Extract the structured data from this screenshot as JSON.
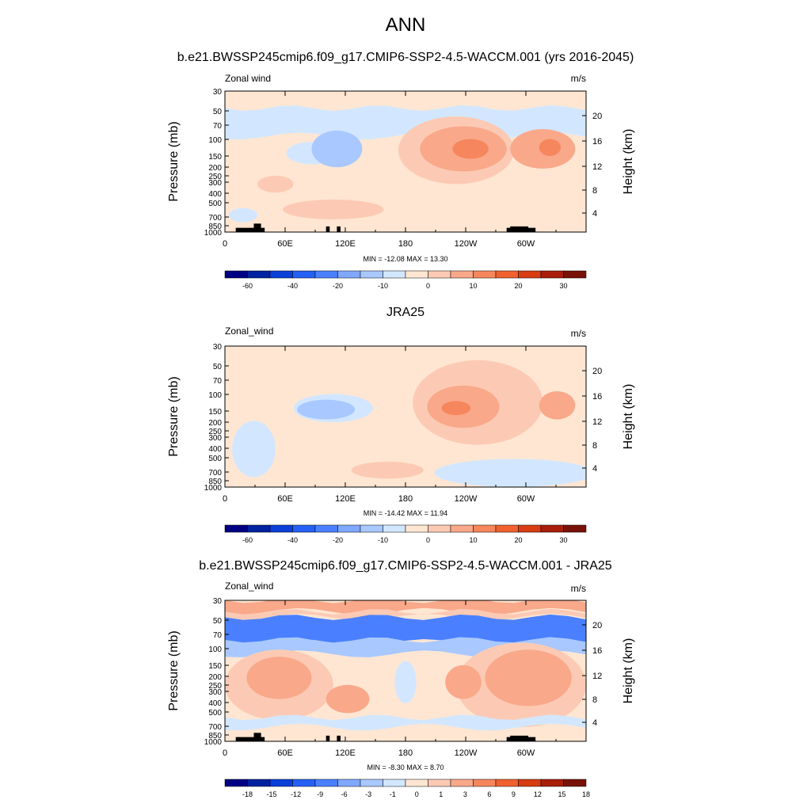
{
  "figure": {
    "title": "ANN"
  },
  "colors": {
    "levels": [
      "#000082",
      "#0022a0",
      "#0a40d8",
      "#2560f5",
      "#4a80ff",
      "#7fa8ff",
      "#a8c8ff",
      "#d2e7ff",
      "#ffe6d2",
      "#fccab4",
      "#f9a88a",
      "#f6865d",
      "#f0612f",
      "#d83c12",
      "#a81e0a",
      "#781208"
    ]
  },
  "chart_data": [
    {
      "type": "heatmap",
      "title": "b.e21.BWSSP245cmip6.f09_g17.CMIP6-SSP2-4.5-WACCM.001 (yrs 2016-2045)",
      "variable_label": "Zonal wind",
      "units": "m/s",
      "xlabel": "",
      "ylabel": "Pressure (mb)",
      "ylabel_right": "Height (km)",
      "x_ticks": [
        "0",
        "60E",
        "120E",
        "180",
        "120W",
        "60W"
      ],
      "y_ticks": [
        "30",
        "50",
        "70",
        "100",
        "150",
        "200",
        "250",
        "300",
        "400",
        "500",
        "700",
        "850",
        "1000"
      ],
      "y_ticks_right": [
        "20",
        "16",
        "12",
        "8",
        "4"
      ],
      "min": -12.08,
      "max": 13.3,
      "stats_label": "MIN = -12.08  MAX =  13.30",
      "colorbar_labels": [
        "-60",
        "-40",
        "-20",
        "-10",
        "0",
        "10",
        "20",
        "30"
      ]
    },
    {
      "type": "heatmap",
      "title": "JRA25",
      "variable_label": "Zonal_wind",
      "units": "m/s",
      "xlabel": "",
      "ylabel": "Pressure (mb)",
      "ylabel_right": "Height (km)",
      "x_ticks": [
        "0",
        "60E",
        "120E",
        "180",
        "120W",
        "60W"
      ],
      "y_ticks": [
        "30",
        "50",
        "70",
        "100",
        "150",
        "200",
        "250",
        "300",
        "400",
        "500",
        "700",
        "850",
        "1000"
      ],
      "y_ticks_right": [
        "20",
        "16",
        "12",
        "8",
        "4"
      ],
      "min": -14.42,
      "max": 11.94,
      "stats_label": "MIN = -14.42  MAX =  11.94",
      "colorbar_labels": [
        "-60",
        "-40",
        "-20",
        "-10",
        "0",
        "10",
        "20",
        "30"
      ]
    },
    {
      "type": "heatmap",
      "title": "b.e21.BWSSP245cmip6.f09_g17.CMIP6-SSP2-4.5-WACCM.001 - JRA25",
      "variable_label": "Zonal_wind",
      "units": "m/s",
      "xlabel": "",
      "ylabel": "Pressure (mb)",
      "ylabel_right": "Height (km)",
      "x_ticks": [
        "0",
        "60E",
        "120E",
        "180",
        "120W",
        "60W"
      ],
      "y_ticks": [
        "30",
        "50",
        "70",
        "100",
        "150",
        "200",
        "250",
        "300",
        "400",
        "500",
        "700",
        "850",
        "1000"
      ],
      "y_ticks_right": [
        "20",
        "16",
        "12",
        "8",
        "4"
      ],
      "min": -8.3,
      "max": 8.7,
      "stats_label": "MIN =  -8.30  MAX =   8.70",
      "colorbar_labels": [
        "-18",
        "-15",
        "-12",
        "-9",
        "-6",
        "-3",
        "-1",
        "0",
        "1",
        "3",
        "6",
        "9",
        "12",
        "15",
        "18"
      ]
    }
  ]
}
